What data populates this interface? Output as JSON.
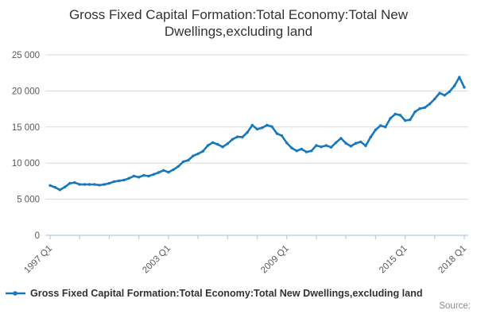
{
  "title": "Gross Fixed Capital Formation:Total Economy:Total New Dwellings,excluding land",
  "legend": {
    "label": "Gross Fixed Capital Formation:Total Economy:Total New Dwellings,excluding land"
  },
  "source_label": "Source:",
  "chart_data": {
    "type": "line",
    "title": "Gross Fixed Capital Formation:Total Economy:Total New Dwellings,excluding land",
    "x_period_start": "1997 Q1",
    "x_period_end": "2018 Q1",
    "x_ticks": [
      {
        "q": 0,
        "label": "1997 Q1"
      },
      {
        "q": 24,
        "label": "2003 Q1"
      },
      {
        "q": 48,
        "label": "2009 Q1"
      },
      {
        "q": 72,
        "label": "2015 Q1"
      },
      {
        "q": 84,
        "label": "2018 Q1"
      }
    ],
    "minor_tick_step": 6,
    "y_ticks": [
      {
        "value": 0,
        "label": "0"
      },
      {
        "value": 5000,
        "label": "5 000"
      },
      {
        "value": 10000,
        "label": "10 000"
      },
      {
        "value": 15000,
        "label": "15 000"
      },
      {
        "value": 20000,
        "label": "20 000"
      },
      {
        "value": 25000,
        "label": "25 000"
      }
    ],
    "ylim": [
      0,
      25000
    ],
    "grid": "horizontal-only",
    "legend_position": "bottom-left",
    "values": [
      6900,
      6650,
      6300,
      6700,
      7200,
      7300,
      7050,
      7050,
      7050,
      7050,
      6950,
      7050,
      7200,
      7450,
      7550,
      7650,
      7900,
      8200,
      8050,
      8300,
      8200,
      8450,
      8700,
      9000,
      8750,
      9100,
      9550,
      10200,
      10400,
      11000,
      11300,
      11650,
      12450,
      12850,
      12600,
      12250,
      12700,
      13300,
      13650,
      13600,
      14250,
      15250,
      14700,
      14900,
      15250,
      15050,
      14100,
      13800,
      12800,
      12100,
      11700,
      11950,
      11550,
      11700,
      12450,
      12250,
      12450,
      12200,
      12850,
      13450,
      12750,
      12350,
      12750,
      12950,
      12400,
      13600,
      14600,
      15200,
      15000,
      16200,
      16800,
      16650,
      15900,
      16000,
      17100,
      17550,
      17700,
      18200,
      18900,
      19700,
      19400,
      19900,
      20700,
      21900,
      20500
    ],
    "colors": {
      "line": "#1878be",
      "grid": "#d9d9d9",
      "axis": "#b8c9e0",
      "tick_text": "#595959",
      "title_text": "#333333",
      "source_text": "#8c8c8c"
    }
  }
}
